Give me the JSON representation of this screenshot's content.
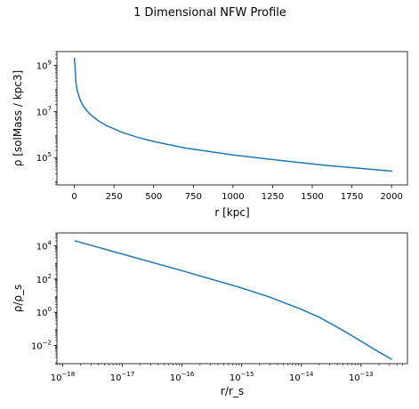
{
  "figure": {
    "suptitle": "1 Dimensional NFW Profile"
  },
  "colors": {
    "series": "#1f77b4",
    "axes": "#000000",
    "background": "#ffffff"
  },
  "chart_data": [
    {
      "type": "line",
      "xscale": "linear",
      "yscale": "log",
      "xlabel": "r [kpc]",
      "ylabel": "ρ [solMass / kpc3]",
      "xlim": [
        -110,
        2100
      ],
      "ylim": [
        6500.0,
        4000000000.0
      ],
      "xticks": [
        0,
        250,
        500,
        750,
        1000,
        1250,
        1500,
        1750,
        2000
      ],
      "xtick_labels": [
        "0",
        "250",
        "500",
        "750",
        "1000",
        "1250",
        "1500",
        "1750",
        "2000"
      ],
      "yticks": [
        100000,
        10000000,
        1000000000
      ],
      "ytick_labels": [
        {
          "base": "10",
          "exp": "5"
        },
        {
          "base": "10",
          "exp": "7"
        },
        {
          "base": "10",
          "exp": "9"
        }
      ],
      "grid": false,
      "series": [
        {
          "x": [
            1,
            10,
            20,
            40,
            60,
            80,
            100,
            150,
            200,
            300,
            400,
            500,
            700,
            1000,
            1300,
            1600,
            2000
          ],
          "y": [
            2000000000.0,
            170000000.0,
            70000000.0,
            28000000.0,
            16000000.0,
            10500000.0,
            7500000.0,
            4000000.0,
            2500000.0,
            1250000.0,
            750000.0,
            500000.0,
            260000.0,
            130000.0,
            75000.0,
            45000.0,
            26000.0
          ]
        }
      ]
    },
    {
      "type": "line",
      "xscale": "log",
      "yscale": "log",
      "xlabel": "r/r_s",
      "ylabel": "ρ/ρ_s",
      "xlim": [
        8e-19,
        6e-13
      ],
      "ylim": [
        0.0008,
        60000
      ],
      "xticks": [
        1e-18,
        1e-17,
        1e-16,
        1e-15,
        1e-14,
        1e-13
      ],
      "xtick_labels": [
        {
          "base": "10",
          "exp": "−18"
        },
        {
          "base": "10",
          "exp": "−17"
        },
        {
          "base": "10",
          "exp": "−16"
        },
        {
          "base": "10",
          "exp": "−15"
        },
        {
          "base": "10",
          "exp": "−14"
        },
        {
          "base": "10",
          "exp": "−13"
        }
      ],
      "yticks": [
        0.01,
        1,
        100,
        10000
      ],
      "ytick_labels": [
        {
          "base": "10",
          "exp": "−2"
        },
        {
          "base": "10",
          "exp": "0"
        },
        {
          "base": "10",
          "exp": "2"
        },
        {
          "base": "10",
          "exp": "4"
        }
      ],
      "grid": false,
      "series": [
        {
          "x": [
            1.62e-18,
            1e-17,
            1e-16,
            1e-15,
            3e-15,
            1e-14,
            2e-14,
            5e-14,
            1e-13,
            2e-13,
            3.24e-13
          ],
          "y": [
            20000,
            3200,
            320,
            29,
            8,
            1.5,
            0.5,
            0.08,
            0.018,
            0.004,
            0.0015
          ]
        }
      ]
    }
  ]
}
